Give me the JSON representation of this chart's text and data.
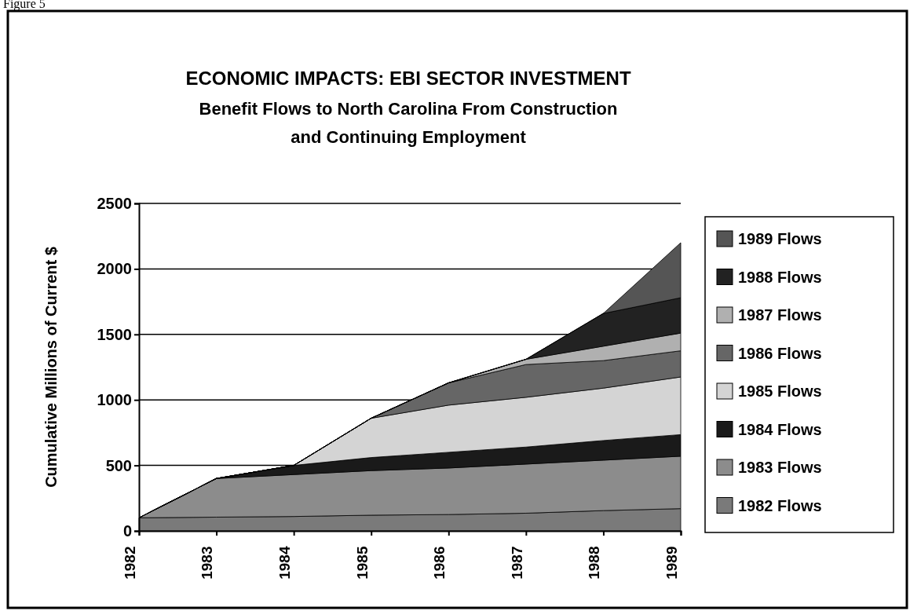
{
  "chart_data": {
    "type": "area",
    "stacked": true,
    "title": "ECONOMIC IMPACTS: EBI SECTOR INVESTMENT",
    "subtitle": "Benefit Flows to North Carolina From Construction and Continuing Employment",
    "ylabel": "Cumulative Millions of Current $",
    "annotations": [
      "Figure 5"
    ],
    "categories": [
      "1982",
      "1983",
      "1984",
      "1985",
      "1986",
      "1987",
      "1988",
      "1989"
    ],
    "ylim": [
      0,
      2500
    ],
    "yticks": [
      0,
      500,
      1000,
      1500,
      2000,
      2500
    ],
    "grid": "y",
    "legend": "right",
    "series": [
      {
        "name": "1982 Flows",
        "color": "#7a7a7a",
        "values": [
          100,
          105,
          110,
          120,
          125,
          135,
          155,
          170
        ]
      },
      {
        "name": "1983 Flows",
        "color": "#8c8c8c",
        "values": [
          0,
          295,
          320,
          340,
          355,
          375,
          385,
          400
        ]
      },
      {
        "name": "1984 Flows",
        "color": "#1a1a1a",
        "values": [
          0,
          0,
          70,
          100,
          120,
          130,
          150,
          165
        ]
      },
      {
        "name": "1985 Flows",
        "color": "#d4d4d4",
        "values": [
          0,
          0,
          0,
          300,
          360,
          380,
          400,
          440
        ]
      },
      {
        "name": "1986 Flows",
        "color": "#666666",
        "values": [
          0,
          0,
          0,
          0,
          170,
          250,
          210,
          200
        ]
      },
      {
        "name": "1987 Flows",
        "color": "#b0b0b0",
        "values": [
          0,
          0,
          0,
          0,
          0,
          40,
          110,
          135
        ]
      },
      {
        "name": "1988 Flows",
        "color": "#222222",
        "values": [
          0,
          0,
          0,
          0,
          0,
          0,
          250,
          270
        ]
      },
      {
        "name": "1989 Flows",
        "color": "#555555",
        "values": [
          0,
          0,
          0,
          0,
          0,
          0,
          0,
          420
        ]
      }
    ]
  }
}
